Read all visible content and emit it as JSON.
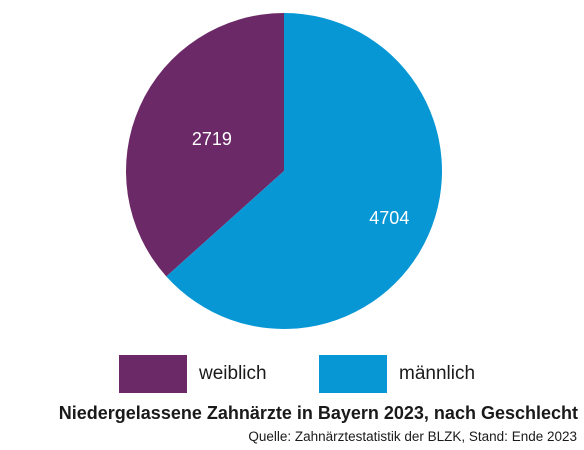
{
  "chart_data": {
    "type": "pie",
    "title": "Niedergelassene Zahnärzte in Bayern 2023, nach Geschlecht",
    "source": "Quelle: Zahnärztestatistik der BLZK, Stand: Ende 2023",
    "categories": [
      "weiblich",
      "männlich"
    ],
    "values": [
      2719,
      4704
    ],
    "value_labels": [
      "2719",
      "4704"
    ],
    "colors": [
      "#6b2a67",
      "#0897d5"
    ],
    "start_angle_deg": 0,
    "direction": "counterclockwise",
    "legend": {
      "placement": "bottom",
      "items": [
        {
          "label": "weiblich",
          "color": "#6b2a67"
        },
        {
          "label": "männlich",
          "color": "#0897d5"
        }
      ]
    }
  }
}
